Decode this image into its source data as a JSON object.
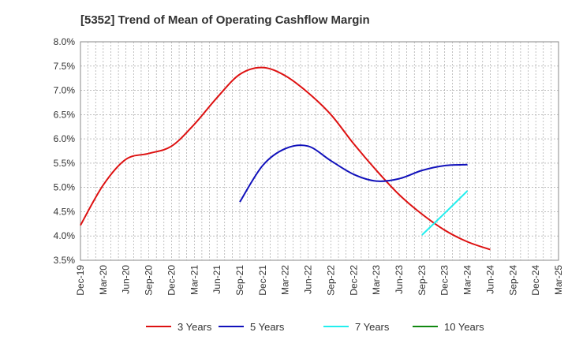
{
  "chart_data": {
    "type": "line",
    "title": "[5352]  Trend of Mean of Operating Cashflow Margin",
    "xlabel": "",
    "ylabel": "",
    "x_ticks": [
      "Dec-19",
      "Mar-20",
      "Jun-20",
      "Sep-20",
      "Dec-20",
      "Mar-21",
      "Jun-21",
      "Sep-21",
      "Dec-21",
      "Mar-22",
      "Jun-22",
      "Sep-22",
      "Dec-22",
      "Mar-23",
      "Jun-23",
      "Sep-23",
      "Dec-23",
      "Mar-24",
      "Jun-24",
      "Sep-24",
      "Dec-24",
      "Mar-25"
    ],
    "y_ticks": [
      "3.5%",
      "4.0%",
      "4.5%",
      "5.0%",
      "5.5%",
      "6.0%",
      "6.5%",
      "7.0%",
      "7.5%",
      "8.0%"
    ],
    "ylim": [
      3.5,
      8.0
    ],
    "grid": true,
    "legend_position": "bottom",
    "series": [
      {
        "name": "3 Years",
        "color": "#dd1111",
        "values": [
          4.22,
          5.05,
          5.58,
          5.7,
          5.85,
          6.3,
          6.85,
          7.33,
          7.47,
          7.3,
          6.95,
          6.5,
          5.9,
          5.35,
          4.85,
          4.45,
          4.12,
          3.88,
          3.72
        ]
      },
      {
        "name": "5 Years",
        "color": "#1111bb",
        "start_index": 7,
        "values": [
          4.7,
          5.45,
          5.8,
          5.85,
          5.55,
          5.27,
          5.13,
          5.18,
          5.35,
          5.45,
          5.47
        ]
      },
      {
        "name": "7 Years",
        "color": "#22eeee",
        "start_index": 15,
        "values": [
          4.02,
          4.47,
          4.93
        ]
      },
      {
        "name": "10 Years",
        "color": "#118811",
        "start_index": 0,
        "values": []
      }
    ]
  }
}
